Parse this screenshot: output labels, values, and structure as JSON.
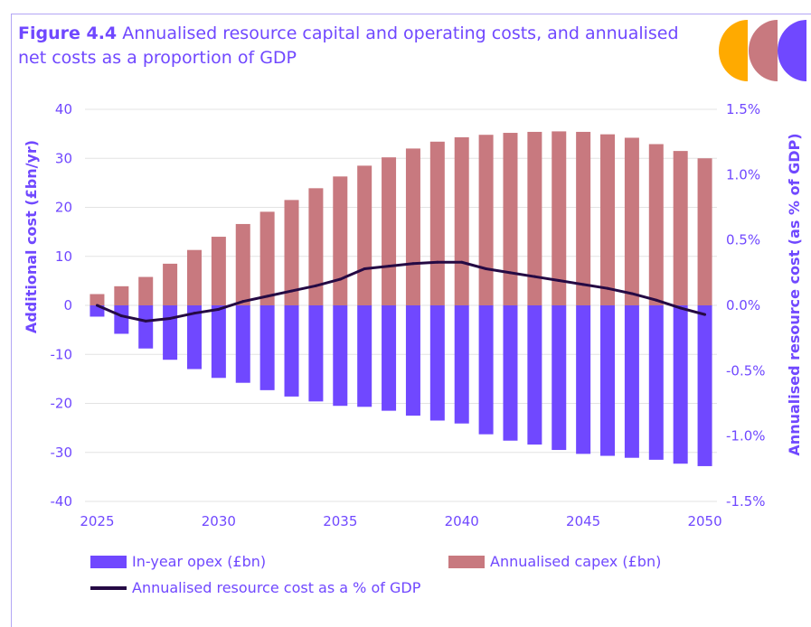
{
  "title": {
    "figure_label": "Figure 4.4",
    "text": "Annualised resource capital and operating costs, and annualised net costs as a proportion of GDP"
  },
  "colors": {
    "opex": "#7048ff",
    "capex": "#c8797f",
    "line": "#250a44",
    "text": "#7048ff",
    "logo": [
      "#ffaa00",
      "#c8797f",
      "#7048ff"
    ]
  },
  "chart_data": {
    "type": "bar",
    "x": [
      2025,
      2026,
      2027,
      2028,
      2029,
      2030,
      2031,
      2032,
      2033,
      2034,
      2035,
      2036,
      2037,
      2038,
      2039,
      2040,
      2041,
      2042,
      2043,
      2044,
      2045,
      2046,
      2047,
      2048,
      2049,
      2050
    ],
    "series": [
      {
        "name": "In-year opex (£bn)",
        "type": "bar",
        "axis": "left",
        "values": [
          -2.3,
          -5.8,
          -8.8,
          -11.1,
          -13,
          -14.8,
          -15.8,
          -17.3,
          -18.6,
          -19.6,
          -20.5,
          -20.7,
          -21.5,
          -22.5,
          -23.5,
          -24.1,
          -26.3,
          -27.6,
          -28.4,
          -29.5,
          -30.3,
          -30.7,
          -31.1,
          -31.5,
          -32.3,
          -32.8
        ]
      },
      {
        "name": "Annualised capex (£bn)",
        "type": "bar",
        "axis": "left",
        "values": [
          2.3,
          3.9,
          5.8,
          8.5,
          11.3,
          14,
          16.6,
          19.1,
          21.5,
          23.9,
          26.3,
          28.5,
          30.2,
          32,
          33.4,
          34.3,
          34.8,
          35.2,
          35.4,
          35.5,
          35.4,
          34.9,
          34.2,
          32.9,
          31.5,
          30
        ]
      },
      {
        "name": "Annualised resource cost as a % of GDP",
        "type": "line",
        "axis": "right",
        "values": [
          0,
          -0.08,
          -0.12,
          -0.1,
          -0.06,
          -0.03,
          0.03,
          0.07,
          0.11,
          0.15,
          0.2,
          0.28,
          0.3,
          0.32,
          0.33,
          0.33,
          0.28,
          0.25,
          0.22,
          0.19,
          0.16,
          0.13,
          0.09,
          0.04,
          -0.02,
          -0.07
        ]
      }
    ],
    "ylabel": "Additional cost (£bn/yr)",
    "y2label": "Annualised resource cost (as % of GDP)",
    "ylim": [
      -40,
      40
    ],
    "y2lim": [
      -1.5,
      1.5
    ],
    "yticks": [
      "40",
      "30",
      "20",
      "10",
      "0",
      "-10",
      "-20",
      "-30",
      "-40"
    ],
    "y2ticks": [
      "1.5%",
      "1.0%",
      "0.5%",
      "0.0%",
      "-0.5%",
      "-1.0%",
      "-1.5%"
    ],
    "xticks": [
      "2025",
      "2030",
      "2035",
      "2040",
      "2045",
      "2050"
    ],
    "grid": true,
    "legend_position": "bottom"
  }
}
